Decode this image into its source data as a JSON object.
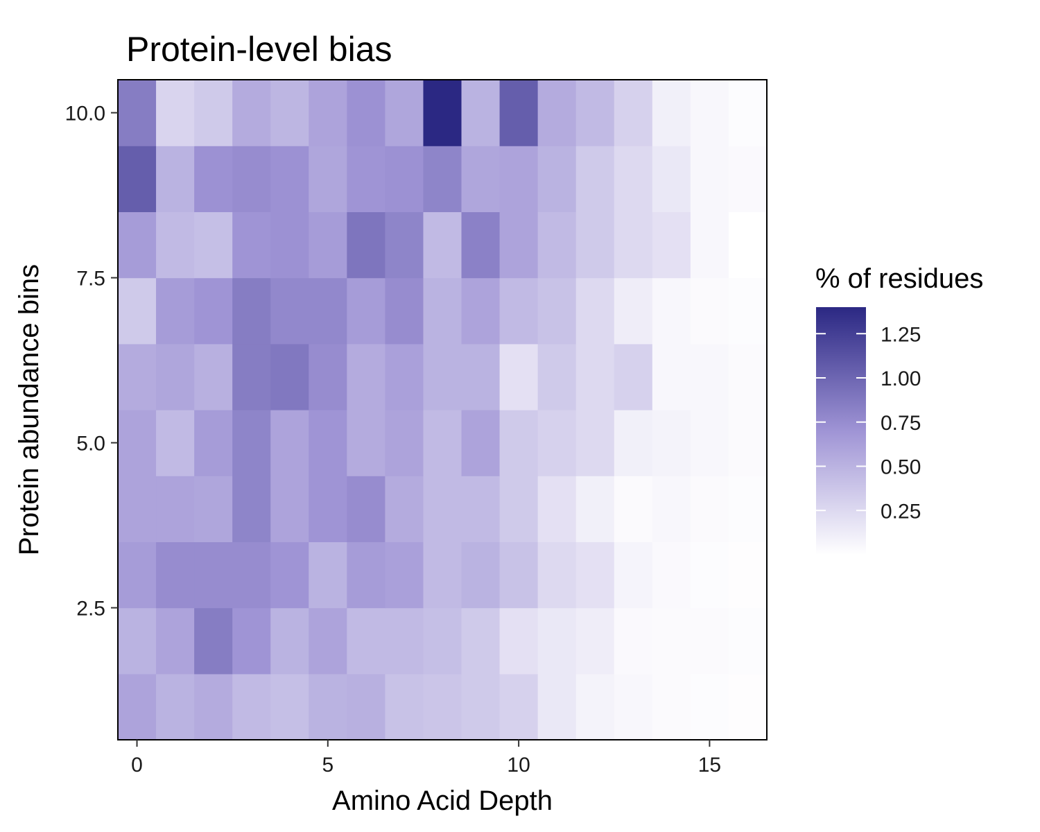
{
  "chart_data": {
    "type": "heatmap",
    "title": "Protein-level bias",
    "xlabel": "Amino Acid Depth",
    "ylabel": "Protein abundance bins",
    "x": [
      0,
      1,
      2,
      3,
      4,
      5,
      6,
      7,
      8,
      9,
      10,
      11,
      12,
      13,
      14,
      15,
      16
    ],
    "y": [
      1,
      2,
      3,
      4,
      5,
      6,
      7,
      8,
      9,
      10
    ],
    "xlim": [
      -0.5,
      16.5
    ],
    "ylim": [
      0.5,
      10.5
    ],
    "xticks": [
      0,
      5,
      10,
      15
    ],
    "xtick_labels": [
      "0",
      "5",
      "10",
      "15"
    ],
    "yticks": [
      2.5,
      5.0,
      7.5,
      10.0
    ],
    "ytick_labels": [
      "2.5",
      "5.0",
      "7.5",
      "10.0"
    ],
    "values": [
      [
        0.6,
        0.5,
        0.55,
        0.45,
        0.42,
        0.5,
        0.52,
        0.4,
        0.38,
        0.35,
        0.3,
        0.15,
        0.08,
        0.05,
        0.03,
        0.02,
        0.01
      ],
      [
        0.5,
        0.6,
        0.85,
        0.7,
        0.5,
        0.6,
        0.45,
        0.45,
        0.42,
        0.35,
        0.2,
        0.15,
        0.12,
        0.04,
        0.03,
        0.03,
        0.02
      ],
      [
        0.65,
        0.75,
        0.75,
        0.75,
        0.7,
        0.5,
        0.65,
        0.62,
        0.45,
        0.5,
        0.4,
        0.25,
        0.2,
        0.07,
        0.04,
        0.02,
        0.01
      ],
      [
        0.6,
        0.6,
        0.58,
        0.8,
        0.6,
        0.7,
        0.75,
        0.55,
        0.45,
        0.45,
        0.35,
        0.2,
        0.1,
        0.03,
        0.05,
        0.03,
        0.02
      ],
      [
        0.6,
        0.45,
        0.65,
        0.8,
        0.6,
        0.7,
        0.55,
        0.6,
        0.45,
        0.6,
        0.35,
        0.3,
        0.25,
        0.1,
        0.08,
        0.05,
        0.03
      ],
      [
        0.55,
        0.58,
        0.52,
        0.85,
        0.88,
        0.75,
        0.55,
        0.62,
        0.5,
        0.5,
        0.2,
        0.35,
        0.25,
        0.3,
        0.05,
        0.05,
        0.03
      ],
      [
        0.35,
        0.65,
        0.7,
        0.85,
        0.78,
        0.78,
        0.65,
        0.75,
        0.5,
        0.6,
        0.45,
        0.4,
        0.25,
        0.12,
        0.05,
        0.03,
        0.02
      ],
      [
        0.65,
        0.45,
        0.42,
        0.7,
        0.72,
        0.65,
        0.9,
        0.8,
        0.45,
        0.82,
        0.6,
        0.45,
        0.35,
        0.25,
        0.2,
        0.05,
        0.0
      ],
      [
        1.05,
        0.5,
        0.72,
        0.75,
        0.72,
        0.58,
        0.7,
        0.72,
        0.8,
        0.58,
        0.6,
        0.5,
        0.35,
        0.25,
        0.15,
        0.05,
        0.04
      ],
      [
        0.85,
        0.28,
        0.35,
        0.55,
        0.48,
        0.6,
        0.72,
        0.58,
        1.4,
        0.5,
        1.05,
        0.55,
        0.45,
        0.3,
        0.1,
        0.05,
        0.02
      ]
    ],
    "legend": {
      "title": "% of residues",
      "placement": "right",
      "range": [
        0,
        1.4
      ],
      "ticks": [
        0.25,
        0.5,
        0.75,
        1.0,
        1.25
      ],
      "tick_labels": [
        "0.25",
        "0.50",
        "0.75",
        "1.00",
        "1.25"
      ],
      "color_low": "#ffffff",
      "color_high": "#2b2883"
    }
  }
}
